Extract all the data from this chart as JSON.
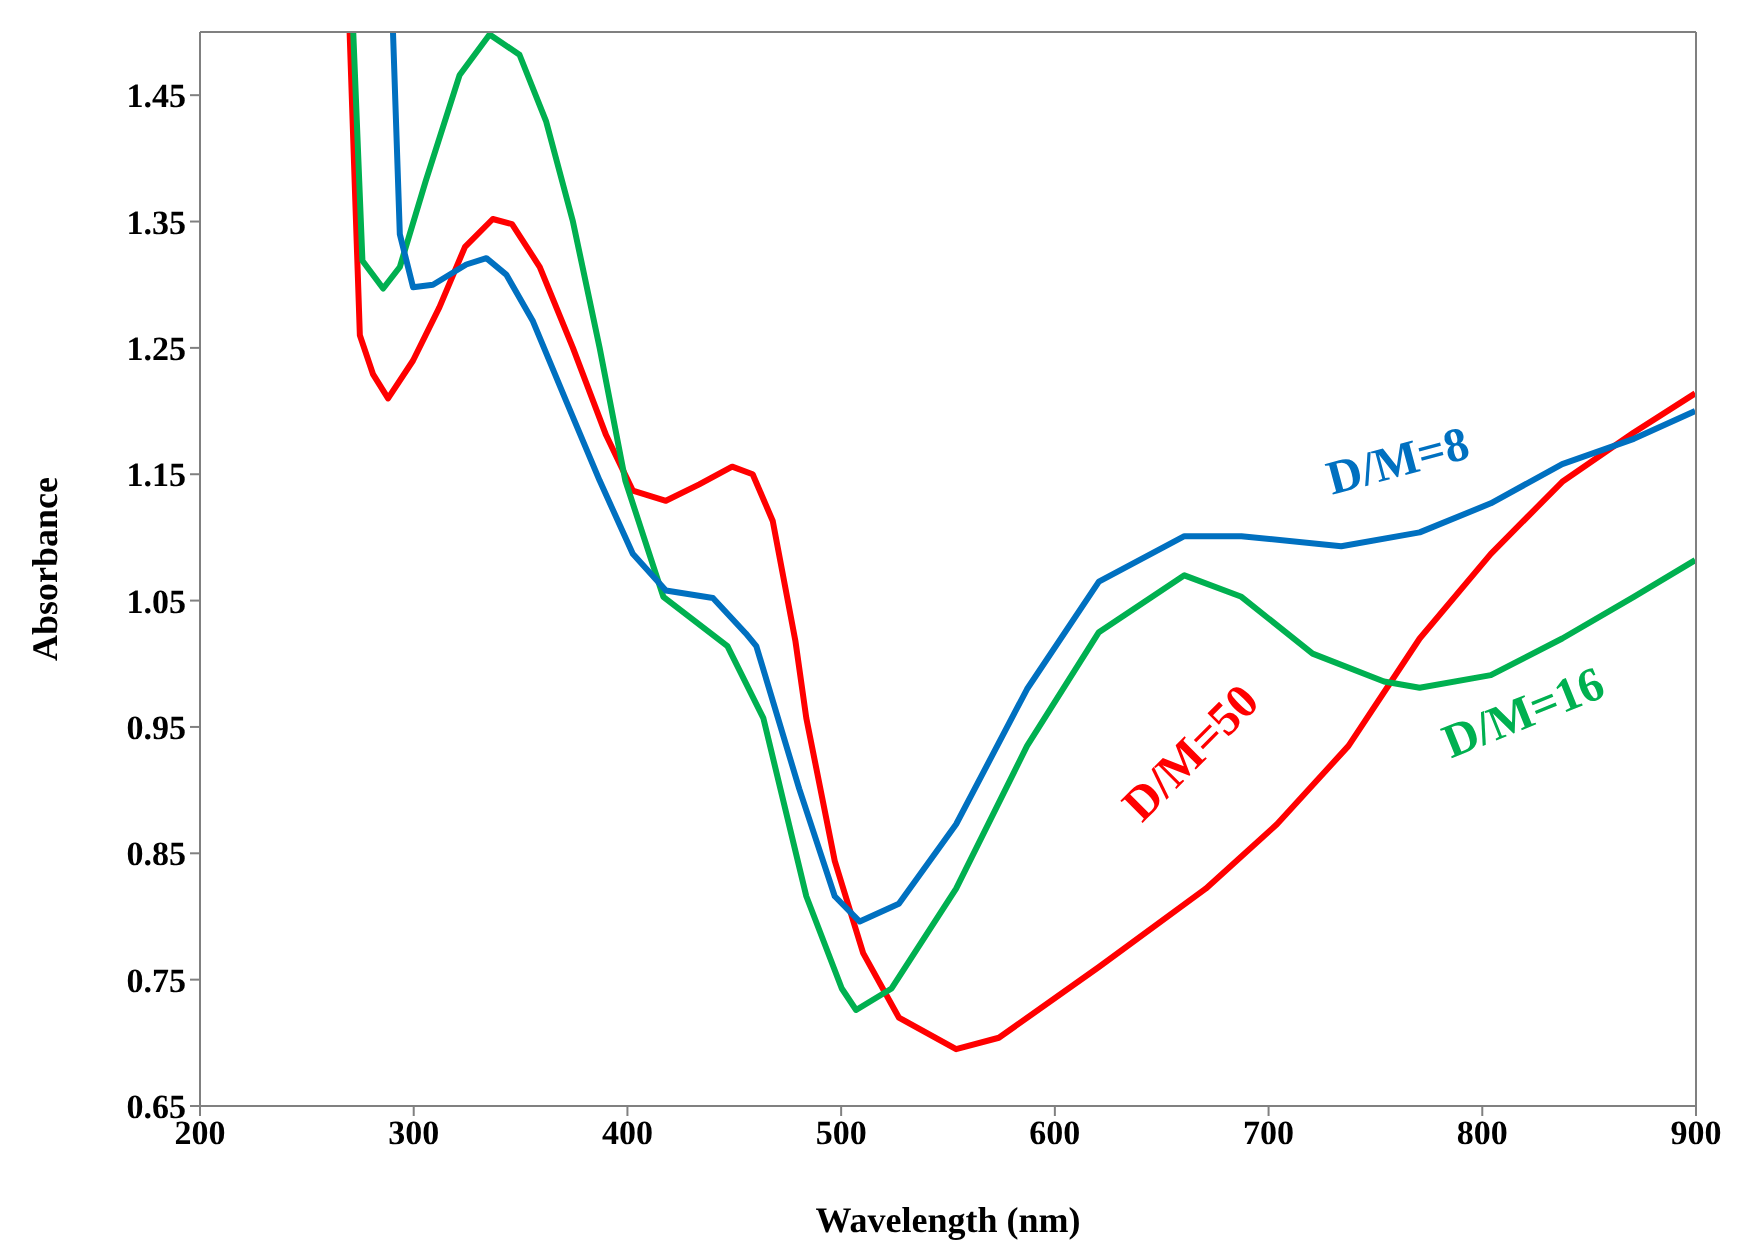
{
  "chart_data": {
    "type": "line",
    "xlabel": "Wavelength (nm)",
    "ylabel": "Absorbance",
    "xlim": [
      200,
      900
    ],
    "xticks": [
      200,
      300,
      400,
      500,
      600,
      700,
      800,
      900
    ],
    "ylim": [
      0.65,
      1.5
    ],
    "yticks": [
      0.65,
      0.75,
      0.85,
      0.95,
      1.05,
      1.15,
      1.25,
      1.35,
      1.45
    ],
    "legend": false,
    "marker": "none",
    "line_style": "solid",
    "series": [
      {
        "name": "D/M=50",
        "color": "#ff0000",
        "x": [
          270,
          274.8,
          281,
          288,
          299.7,
          312,
          324,
          337,
          346,
          359,
          374.5,
          390,
          402.5,
          418,
          433.6,
          449,
          458.6,
          468,
          478.6,
          483.7,
          497,
          510.3,
          527,
          553.8,
          573.8,
          620.6,
          670.6,
          703.9,
          737.4,
          770.7,
          804,
          837.4,
          870.9,
          899.6
        ],
        "values": [
          1.5,
          1.26,
          1.229,
          1.21,
          1.24,
          1.282,
          1.33,
          1.352,
          1.348,
          1.314,
          1.25,
          1.181,
          1.137,
          1.129,
          1.142,
          1.156,
          1.15,
          1.113,
          1.018,
          0.957,
          0.844,
          0.771,
          0.72,
          0.695,
          0.704,
          0.76,
          0.822,
          0.873,
          0.935,
          1.02,
          1.087,
          1.144,
          1.183,
          1.214
        ]
      },
      {
        "name": "D/M=16",
        "color": "#00b050",
        "x": [
          271.7,
          276,
          285.7,
          293.5,
          305.6,
          321.5,
          335.5,
          349.5,
          362,
          374.5,
          387,
          399,
          416.8,
          446.8,
          463.6,
          483.7,
          500.3,
          507,
          523.6,
          553.8,
          587,
          620.6,
          660.6,
          687.3,
          720.6,
          754,
          770.7,
          804,
          837.4,
          870.9,
          899.6
        ],
        "values": [
          1.5,
          1.319,
          1.297,
          1.314,
          1.382,
          1.466,
          1.498,
          1.482,
          1.429,
          1.35,
          1.25,
          1.145,
          1.053,
          1.014,
          0.957,
          0.816,
          0.743,
          0.726,
          0.743,
          0.822,
          0.935,
          1.025,
          1.07,
          1.053,
          1.008,
          0.986,
          0.981,
          0.991,
          1.02,
          1.053,
          1.082
        ]
      },
      {
        "name": "D/M=8",
        "color": "#0070c0",
        "x": [
          290.3,
          293.5,
          299.7,
          309,
          324.6,
          334,
          343.3,
          355.8,
          371.3,
          387,
          402.5,
          418,
          440,
          455.4,
          460.3,
          480.4,
          497,
          508.7,
          527,
          553.8,
          587,
          620.6,
          660.6,
          687.3,
          734,
          770.7,
          804,
          837.4,
          870.9,
          899.6
        ],
        "values": [
          1.5,
          1.34,
          1.298,
          1.3,
          1.316,
          1.321,
          1.308,
          1.271,
          1.208,
          1.145,
          1.087,
          1.058,
          1.052,
          1.024,
          1.014,
          0.901,
          0.816,
          0.796,
          0.81,
          0.873,
          0.98,
          1.065,
          1.101,
          1.101,
          1.093,
          1.104,
          1.127,
          1.158,
          1.178,
          1.2
        ]
      }
    ]
  }
}
